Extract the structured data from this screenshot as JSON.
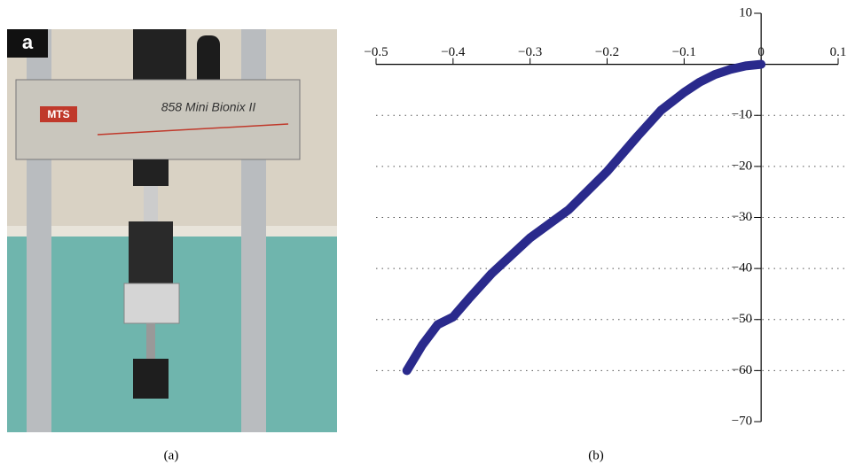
{
  "photo": {
    "badge": "a",
    "brand": "MTS",
    "model": "858 Mini Bionix II"
  },
  "captions": [
    "(a)",
    "(b)"
  ],
  "chart_data": {
    "type": "line",
    "x": [
      0,
      -0.02,
      -0.04,
      -0.06,
      -0.08,
      -0.1,
      -0.13,
      -0.16,
      -0.2,
      -0.25,
      -0.3,
      -0.35,
      -0.38,
      -0.4,
      -0.42,
      -0.44,
      -0.46
    ],
    "series": [
      {
        "color": "#2a2a8c",
        "values": [
          0,
          -0.3,
          -1,
          -2,
          -3.5,
          -5.5,
          -9,
          -14,
          -21,
          -28.5,
          -34,
          -41,
          -46,
          -49.5,
          -51,
          -55,
          -60
        ]
      }
    ],
    "xlim": [
      -0.5,
      0.1
    ],
    "xticks": [
      {
        "value": -0.5,
        "label": "−0.5"
      },
      {
        "value": -0.4,
        "label": "−0.4"
      },
      {
        "value": -0.3,
        "label": "−0.3"
      },
      {
        "value": -0.2,
        "label": "−0.2"
      },
      {
        "value": -0.1,
        "label": "−0.1"
      },
      0,
      0.1
    ],
    "ylim": [
      -70,
      10
    ],
    "yticks": [
      10,
      {
        "value": -10,
        "label": "−10"
      },
      {
        "value": -20,
        "label": "−20"
      },
      {
        "value": -30,
        "label": "−30"
      },
      {
        "value": -40,
        "label": "−40"
      },
      {
        "value": -50,
        "label": "−50"
      },
      {
        "value": -60,
        "label": "−60"
      },
      {
        "value": -70,
        "label": "−70"
      }
    ],
    "grid": true
  }
}
